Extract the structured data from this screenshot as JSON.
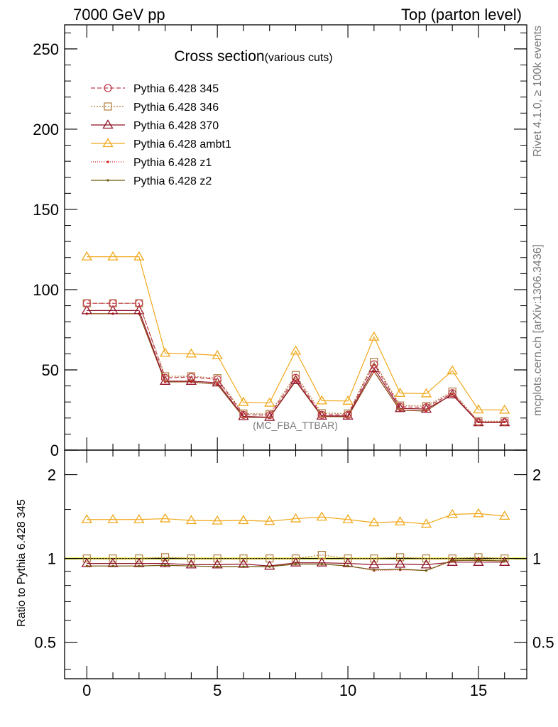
{
  "header": {
    "left": "7000 GeV pp",
    "right": "Top (parton level)"
  },
  "side_labels": {
    "rivet": "Rivet 4.1.0, ≥ 100k events",
    "mcplots": "mcplots.cern.ch [arXiv:1306.3436]"
  },
  "chart_data": {
    "type": "line",
    "title": "Cross section",
    "subtitle": "(various cuts)",
    "analysis_label": "(MC_FBA_TTBAR)",
    "x": [
      0,
      1,
      2,
      3,
      4,
      5,
      6,
      7,
      8,
      9,
      10,
      11,
      12,
      13,
      14,
      15,
      16
    ],
    "xlim": [
      -0.85,
      16.85
    ],
    "xticks": [
      0,
      5,
      10,
      15
    ],
    "ylim": [
      0,
      265
    ],
    "yticks": [
      0,
      50,
      100,
      150,
      200,
      250
    ],
    "series": [
      {
        "name": "Pythia 6.428 345",
        "color": "#c0394c",
        "dash": "6,3",
        "marker": "circle",
        "values": [
          91.5,
          91.5,
          91.5,
          45.0,
          45.5,
          44.0,
          22.0,
          21.8,
          45.0,
          22.0,
          22.0,
          53.5,
          27.0,
          26.7,
          35.5,
          17.5,
          17.5
        ]
      },
      {
        "name": "Pythia 6.428 346",
        "color": "#b07c3c",
        "dash": "2,2",
        "marker": "square",
        "values": [
          91.5,
          91.5,
          91.5,
          46.0,
          46.0,
          44.8,
          22.8,
          22.5,
          46.8,
          23.0,
          22.8,
          55.0,
          27.8,
          27.5,
          36.5,
          18.0,
          18.0
        ]
      },
      {
        "name": "Pythia 6.428 370",
        "color": "#8e1226",
        "dash": "",
        "marker": "triangle",
        "values": [
          87.0,
          87.0,
          87.0,
          43.0,
          43.0,
          42.0,
          21.0,
          20.5,
          43.5,
          21.3,
          21.3,
          51.0,
          26.0,
          25.6,
          34.5,
          17.2,
          17.2
        ]
      },
      {
        "name": "Pythia 6.428 ambt1",
        "color": "#f0a81c",
        "dash": "",
        "marker": "triangle",
        "values": [
          120.5,
          120.5,
          120.5,
          60.5,
          60.0,
          59.0,
          29.8,
          29.4,
          61.8,
          30.8,
          30.6,
          70.5,
          35.5,
          35.2,
          49.5,
          25.2,
          25.0
        ]
      },
      {
        "name": "Pythia 6.428 z1",
        "color": "#d41a1a",
        "dash": "1,2",
        "marker": "dot",
        "values": [
          85.0,
          85.0,
          85.0,
          42.5,
          42.5,
          41.0,
          20.5,
          20.3,
          43.0,
          21.0,
          20.8,
          49.0,
          24.8,
          24.4,
          35.0,
          17.5,
          17.5
        ]
      },
      {
        "name": "Pythia 6.428 z2",
        "color": "#6d5a0c",
        "dash": "",
        "marker": "dot",
        "values": [
          85.0,
          85.0,
          85.0,
          42.5,
          42.5,
          41.0,
          20.5,
          20.3,
          43.0,
          21.0,
          20.8,
          49.0,
          24.8,
          24.4,
          35.0,
          17.5,
          17.5
        ]
      }
    ],
    "ratio": {
      "ylabel": "Ratio to Pythia 6.428 345",
      "ylim": [
        0.37,
        2.45
      ],
      "yticks": [
        0.5,
        1,
        2
      ],
      "ytick_labels": [
        "0.5",
        "1",
        "2"
      ],
      "band_color": "#f4f46c",
      "series": [
        {
          "name": "Pythia 6.428 345",
          "values": [
            1,
            1,
            1,
            1,
            1,
            1,
            1,
            1,
            1,
            1,
            1,
            1,
            1,
            1,
            1,
            1,
            1
          ]
        },
        {
          "name": "Pythia 6.428 346",
          "values": [
            1.0,
            1.0,
            1.0,
            1.01,
            1.0,
            1.0,
            1.0,
            1.0,
            1.0,
            1.03,
            1.0,
            1.0,
            1.01,
            1.0,
            1.0,
            1.01,
            1.0
          ]
        },
        {
          "name": "Pythia 6.428 370",
          "values": [
            0.96,
            0.96,
            0.96,
            0.96,
            0.95,
            0.95,
            0.955,
            0.94,
            0.965,
            0.965,
            0.96,
            0.95,
            0.955,
            0.95,
            0.97,
            0.97,
            0.97
          ]
        },
        {
          "name": "Pythia 6.428 ambt1",
          "values": [
            1.38,
            1.38,
            1.38,
            1.39,
            1.37,
            1.365,
            1.37,
            1.36,
            1.39,
            1.41,
            1.38,
            1.345,
            1.355,
            1.33,
            1.44,
            1.45,
            1.42
          ]
        },
        {
          "name": "Pythia 6.428 z1",
          "values": [
            0.94,
            0.94,
            0.94,
            0.945,
            0.94,
            0.935,
            0.935,
            0.935,
            0.955,
            0.955,
            0.94,
            0.905,
            0.91,
            0.905,
            0.98,
            0.99,
            0.98
          ]
        },
        {
          "name": "Pythia 6.428 z2",
          "values": [
            0.94,
            0.94,
            0.94,
            0.945,
            0.94,
            0.935,
            0.935,
            0.935,
            0.955,
            0.955,
            0.94,
            0.91,
            0.915,
            0.905,
            0.985,
            0.985,
            0.98
          ]
        }
      ]
    }
  }
}
